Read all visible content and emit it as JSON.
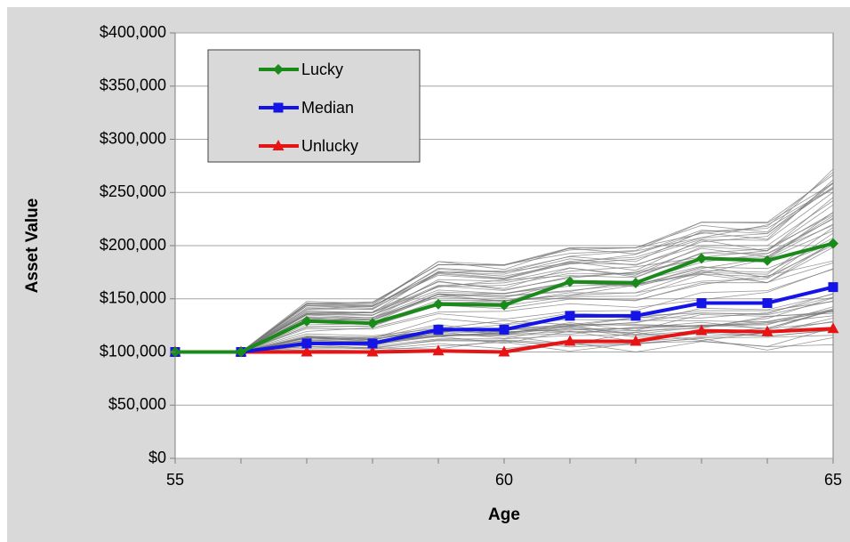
{
  "chart_data": {
    "type": "line",
    "title": "",
    "xlabel": "Age",
    "ylabel": "Asset Value",
    "xlim": [
      55,
      65
    ],
    "ylim": [
      0,
      400000
    ],
    "x_ticks": [
      "55",
      "60",
      "65"
    ],
    "y_ticks": [
      "$0",
      "$50,000",
      "$100,000",
      "$150,000",
      "$200,000",
      "$250,000",
      "$300,000",
      "$350,000",
      "$400,000"
    ],
    "grid": "horizontal",
    "legend_position": "top-left",
    "x": [
      55,
      56,
      57,
      58,
      59,
      60,
      61,
      62,
      63,
      64,
      65
    ],
    "series": [
      {
        "name": "Lucky",
        "color": "#1a8a1a",
        "marker": "diamond",
        "values": [
          100000,
          100000,
          129000,
          127000,
          145000,
          144000,
          166000,
          165000,
          188000,
          186000,
          202000
        ]
      },
      {
        "name": "Median",
        "color": "#1414e6",
        "marker": "square",
        "values": [
          100000,
          100000,
          108000,
          108000,
          121000,
          121000,
          134000,
          134000,
          146000,
          146000,
          161000
        ]
      },
      {
        "name": "Unlucky",
        "color": "#e61414",
        "marker": "triangle",
        "values": [
          100000,
          100000,
          100000,
          100000,
          101000,
          100000,
          110000,
          110000,
          120000,
          119000,
          122000
        ]
      }
    ],
    "background_paths": {
      "color": "#777777",
      "note_style": "thin grey simulated paths",
      "envelope_low": [
        100000,
        100000,
        100000,
        100000,
        100000,
        100000,
        100000,
        100000,
        100000,
        100000,
        100000
      ],
      "envelope_high": [
        100000,
        100000,
        148000,
        147000,
        185000,
        182000,
        198000,
        198000,
        222000,
        222000,
        272000
      ]
    }
  }
}
